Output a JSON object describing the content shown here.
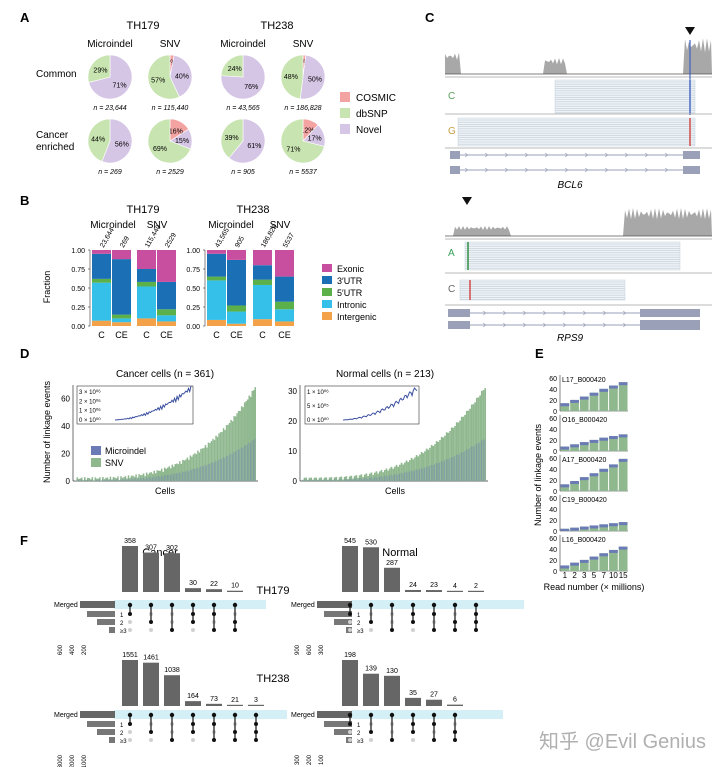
{
  "panels": {
    "A": "A",
    "B": "B",
    "C": "C",
    "D": "D",
    "E": "E",
    "F": "F"
  },
  "colors": {
    "cosmic": "#f4a3a3",
    "dbsnp": "#c8e4b0",
    "novel": "#d6c6e6",
    "exonic": "#c84ea0",
    "utr3": "#1a6fb5",
    "utr5": "#5bb04a",
    "intronic": "#34c0e8",
    "intergenic": "#f4a24a",
    "microindel": "#6a7bb5",
    "snv": "#8fb88f",
    "track": "#9aa0b8",
    "coverage": "#a8a8a8"
  },
  "panelA": {
    "samples": [
      "TH179",
      "TH238"
    ],
    "col_labels": [
      "Microindel",
      "SNV",
      "Microindel",
      "SNV"
    ],
    "row_labels": [
      "Common",
      "Cancer\nenriched"
    ],
    "legend": [
      {
        "label": "COSMIC",
        "key": "cosmic"
      },
      {
        "label": "dbSNP",
        "key": "dbsnp"
      },
      {
        "label": "Novel",
        "key": "novel"
      }
    ],
    "pies": [
      {
        "row": 0,
        "col": 0,
        "cosmic": 0,
        "dbsnp": 29,
        "novel": 71,
        "n": "n = 23,644"
      },
      {
        "row": 0,
        "col": 1,
        "cosmic": 3,
        "dbsnp": 57,
        "novel": 40,
        "n": "n = 115,440"
      },
      {
        "row": 0,
        "col": 2,
        "cosmic": 0,
        "dbsnp": 24,
        "novel": 76,
        "n": "n = 43,565"
      },
      {
        "row": 0,
        "col": 3,
        "cosmic": 2,
        "dbsnp": 48,
        "novel": 50,
        "n": "n = 186,828"
      },
      {
        "row": 1,
        "col": 0,
        "cosmic": 0,
        "dbsnp": 44,
        "novel": 56,
        "n": "n = 269"
      },
      {
        "row": 1,
        "col": 1,
        "cosmic": 16,
        "dbsnp": 69,
        "novel": 15,
        "n": "n = 2529"
      },
      {
        "row": 1,
        "col": 2,
        "cosmic": 0,
        "dbsnp": 39,
        "novel": 61,
        "n": "n = 905"
      },
      {
        "row": 1,
        "col": 3,
        "cosmic": 12,
        "dbsnp": 71,
        "novel": 17,
        "n": "n = 5537"
      }
    ]
  },
  "panelB": {
    "samples": [
      "TH179",
      "TH238"
    ],
    "group_labels": [
      "Microindel",
      "SNV",
      "Microindel",
      "SNV"
    ],
    "ylabel": "Fraction",
    "yticks": [
      "0.00",
      "0.25",
      "0.50",
      "0.75",
      "1.00"
    ],
    "xlabels": [
      "C",
      "CE",
      "C",
      "CE",
      "C",
      "CE",
      "C",
      "CE"
    ],
    "counts": [
      "23,644",
      "269",
      "115,440",
      "2529",
      "43,565",
      "905",
      "186,828",
      "5537"
    ],
    "legend": [
      {
        "label": "Exonic",
        "key": "exonic"
      },
      {
        "label": "3′UTR",
        "key": "utr3"
      },
      {
        "label": "5′UTR",
        "key": "utr5"
      },
      {
        "label": "Intronic",
        "key": "intronic"
      },
      {
        "label": "Intergenic",
        "key": "intergenic"
      }
    ],
    "bars": [
      {
        "intergenic": 0.07,
        "intronic": 0.5,
        "utr5": 0.05,
        "utr3": 0.33,
        "exonic": 0.05
      },
      {
        "intergenic": 0.05,
        "intronic": 0.05,
        "utr5": 0.05,
        "utr3": 0.73,
        "exonic": 0.12
      },
      {
        "intergenic": 0.1,
        "intronic": 0.42,
        "utr5": 0.06,
        "utr3": 0.17,
        "exonic": 0.25
      },
      {
        "intergenic": 0.06,
        "intronic": 0.08,
        "utr5": 0.08,
        "utr3": 0.36,
        "exonic": 0.42
      },
      {
        "intergenic": 0.08,
        "intronic": 0.52,
        "utr5": 0.05,
        "utr3": 0.3,
        "exonic": 0.05
      },
      {
        "intergenic": 0.03,
        "intronic": 0.16,
        "utr5": 0.08,
        "utr3": 0.6,
        "exonic": 0.13
      },
      {
        "intergenic": 0.09,
        "intronic": 0.45,
        "utr5": 0.07,
        "utr3": 0.19,
        "exonic": 0.2
      },
      {
        "intergenic": 0.06,
        "intronic": 0.16,
        "utr5": 0.1,
        "utr3": 0.33,
        "exonic": 0.35
      }
    ]
  },
  "panelC": {
    "gene1": "BCL6",
    "gene2": "RPS9",
    "g1_alleles": [
      "C",
      "G"
    ],
    "g2_alleles": [
      "A",
      "C"
    ]
  },
  "panelD": {
    "left": {
      "title": "Cancer cells (n = 361)",
      "yticks": [
        "0",
        "20",
        "40",
        "60"
      ],
      "inset_ticks": [
        "3 × 10⁰⁶",
        "2 × 10⁰⁶",
        "1 × 10⁰⁶",
        "0 × 10⁰⁰"
      ],
      "ymax": 70
    },
    "right": {
      "title": "Normal cells (n = 213)",
      "yticks": [
        "0",
        "10",
        "20",
        "30"
      ],
      "inset_ticks": [
        "1 × 10⁰⁶",
        "5 × 10⁰⁵",
        "0 × 10⁰⁰"
      ],
      "ymax": 32
    },
    "ylabel": "Number of linkage events",
    "xlabel": "Cells",
    "legend": [
      {
        "label": "Microindel",
        "key": "microindel"
      },
      {
        "label": "SNV",
        "key": "snv"
      }
    ]
  },
  "panelE": {
    "ylabel": "Number of linkage events",
    "xlabel": "Read number (× millions)",
    "xticks": [
      "1",
      "2",
      "3",
      "5",
      "7",
      "10",
      "15"
    ],
    "yticks": [
      "0",
      "20",
      "40",
      "60"
    ],
    "cells": [
      {
        "name": "L17_B000420",
        "values": [
          14,
          20,
          26,
          33,
          40,
          46,
          52
        ]
      },
      {
        "name": "O16_B000420",
        "values": [
          8,
          12,
          16,
          20,
          24,
          27,
          30
        ]
      },
      {
        "name": "A17_B000420",
        "values": [
          12,
          18,
          25,
          32,
          40,
          48,
          58
        ]
      },
      {
        "name": "C19_B000420",
        "values": [
          4,
          6,
          8,
          10,
          12,
          14,
          16
        ]
      },
      {
        "name": "L16_B000420",
        "values": [
          10,
          15,
          20,
          26,
          32,
          38,
          44
        ]
      }
    ]
  },
  "panelF": {
    "col_titles": [
      "Cancer",
      "Normal"
    ],
    "row_titles": [
      "TH179",
      "TH238"
    ],
    "merged_label": "Merged",
    "set_labels": [
      "1",
      "2",
      "≥3"
    ],
    "blocks": [
      {
        "values": [
          "358",
          "307",
          "302",
          "30",
          "22",
          "10"
        ],
        "nums": [
          358,
          307,
          302,
          30,
          22,
          10
        ],
        "max": 358,
        "ticks": [
          "600",
          "400",
          "200"
        ]
      },
      {
        "values": [
          "545",
          "530",
          "287",
          "24",
          "23",
          "4",
          "2"
        ],
        "nums": [
          545,
          530,
          287,
          24,
          23,
          4,
          2
        ],
        "max": 545,
        "ticks": [
          "900",
          "600",
          "300"
        ]
      },
      {
        "values": [
          "1551",
          "1461",
          "1038",
          "164",
          "73",
          "21",
          "3"
        ],
        "nums": [
          1551,
          1461,
          1038,
          164,
          73,
          21,
          3
        ],
        "max": 1551,
        "ticks": [
          "3000",
          "2000",
          "1000"
        ]
      },
      {
        "values": [
          "198",
          "139",
          "130",
          "35",
          "27",
          "6"
        ],
        "nums": [
          198,
          139,
          130,
          35,
          27,
          6
        ],
        "max": 198,
        "ticks": [
          "300",
          "200",
          "100"
        ]
      }
    ]
  },
  "watermark": "知乎 @Evil Genius"
}
